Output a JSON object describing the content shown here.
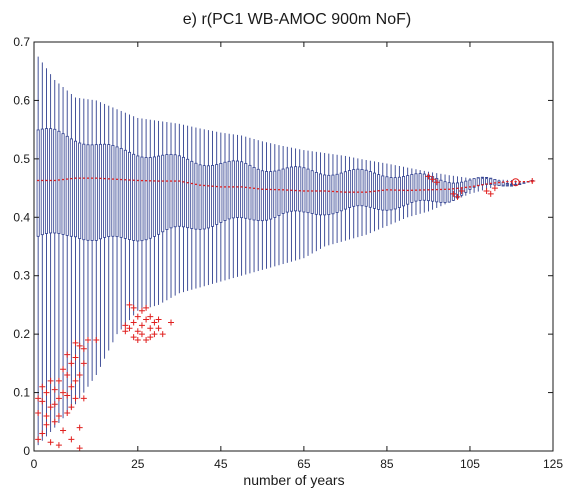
{
  "chart_data": {
    "type": "box",
    "title": "e) r(PC1 WB-AMOC 900m NoF)",
    "xlabel": "number of years",
    "ylabel": "",
    "xlim": [
      0,
      125
    ],
    "ylim": [
      0,
      0.7
    ],
    "x_ticks": [
      0,
      25,
      45,
      65,
      85,
      105,
      125
    ],
    "y_ticks": [
      0,
      0.1,
      0.2,
      0.3,
      0.4,
      0.5,
      0.6,
      0.7
    ],
    "grid": false,
    "colors": {
      "box": "#2f3f8f",
      "median": "#e0201f",
      "outlier": "#e0201f",
      "axis": "#1a1a1a"
    },
    "box_stats": [
      {
        "x": 1,
        "wlo": 0.01,
        "q1": 0.365,
        "med": 0.463,
        "q3": 0.548,
        "whi": 0.675
      },
      {
        "x": 5,
        "wlo": 0.04,
        "q1": 0.368,
        "med": 0.463,
        "q3": 0.545,
        "whi": 0.635
      },
      {
        "x": 10,
        "wlo": 0.08,
        "q1": 0.372,
        "med": 0.467,
        "q3": 0.535,
        "whi": 0.605
      },
      {
        "x": 15,
        "wlo": 0.13,
        "q1": 0.36,
        "med": 0.467,
        "q3": 0.525,
        "whi": 0.6
      },
      {
        "x": 20,
        "wlo": 0.2,
        "q1": 0.362,
        "med": 0.465,
        "q3": 0.515,
        "whi": 0.585
      },
      {
        "x": 25,
        "wlo": 0.24,
        "q1": 0.365,
        "med": 0.463,
        "q3": 0.51,
        "whi": 0.57
      },
      {
        "x": 30,
        "wlo": 0.25,
        "q1": 0.37,
        "med": 0.462,
        "q3": 0.505,
        "whi": 0.565
      },
      {
        "x": 35,
        "wlo": 0.27,
        "q1": 0.38,
        "med": 0.462,
        "q3": 0.5,
        "whi": 0.56
      },
      {
        "x": 40,
        "wlo": 0.28,
        "q1": 0.385,
        "med": 0.455,
        "q3": 0.495,
        "whi": 0.552
      },
      {
        "x": 45,
        "wlo": 0.29,
        "q1": 0.39,
        "med": 0.452,
        "q3": 0.492,
        "whi": 0.545
      },
      {
        "x": 50,
        "wlo": 0.3,
        "q1": 0.395,
        "med": 0.452,
        "q3": 0.49,
        "whi": 0.54
      },
      {
        "x": 55,
        "wlo": 0.31,
        "q1": 0.4,
        "med": 0.448,
        "q3": 0.485,
        "whi": 0.53
      },
      {
        "x": 60,
        "wlo": 0.32,
        "q1": 0.405,
        "med": 0.447,
        "q3": 0.482,
        "whi": 0.522
      },
      {
        "x": 65,
        "wlo": 0.33,
        "q1": 0.405,
        "med": 0.445,
        "q3": 0.48,
        "whi": 0.515
      },
      {
        "x": 70,
        "wlo": 0.35,
        "q1": 0.41,
        "med": 0.445,
        "q3": 0.478,
        "whi": 0.51
      },
      {
        "x": 75,
        "wlo": 0.36,
        "q1": 0.412,
        "med": 0.443,
        "q3": 0.477,
        "whi": 0.505
      },
      {
        "x": 80,
        "wlo": 0.37,
        "q1": 0.415,
        "med": 0.443,
        "q3": 0.476,
        "whi": 0.498
      },
      {
        "x": 85,
        "wlo": 0.385,
        "q1": 0.418,
        "med": 0.447,
        "q3": 0.475,
        "whi": 0.492
      },
      {
        "x": 90,
        "wlo": 0.4,
        "q1": 0.42,
        "med": 0.446,
        "q3": 0.47,
        "whi": 0.485
      },
      {
        "x": 95,
        "wlo": 0.41,
        "q1": 0.425,
        "med": 0.447,
        "q3": 0.468,
        "whi": 0.478
      },
      {
        "x": 100,
        "wlo": 0.425,
        "q1": 0.432,
        "med": 0.448,
        "q3": 0.465,
        "whi": 0.472
      },
      {
        "x": 105,
        "wlo": 0.44,
        "q1": 0.445,
        "med": 0.452,
        "q3": 0.462,
        "whi": 0.467
      },
      {
        "x": 110,
        "wlo": 0.45,
        "q1": 0.453,
        "med": 0.458,
        "q3": 0.463,
        "whi": 0.465
      },
      {
        "x": 114,
        "wlo": 0.458,
        "q1": 0.459,
        "med": 0.461,
        "q3": 0.463,
        "whi": 0.464
      },
      {
        "x": 120,
        "wlo": 0.461,
        "q1": 0.461,
        "med": 0.461,
        "q3": 0.461,
        "whi": 0.461
      }
    ],
    "outliers": [
      {
        "x": 1,
        "y": 0.02
      },
      {
        "x": 1,
        "y": 0.065
      },
      {
        "x": 1,
        "y": 0.09
      },
      {
        "x": 2,
        "y": 0.03
      },
      {
        "x": 2,
        "y": 0.11
      },
      {
        "x": 2,
        "y": 0.085
      },
      {
        "x": 3,
        "y": 0.06
      },
      {
        "x": 3,
        "y": 0.1
      },
      {
        "x": 3,
        "y": 0.045
      },
      {
        "x": 4,
        "y": 0.12
      },
      {
        "x": 4,
        "y": 0.075
      },
      {
        "x": 4,
        "y": 0.015
      },
      {
        "x": 5,
        "y": 0.08
      },
      {
        "x": 5,
        "y": 0.05
      },
      {
        "x": 5,
        "y": 0.105
      },
      {
        "x": 6,
        "y": 0.09
      },
      {
        "x": 6,
        "y": 0.06
      },
      {
        "x": 6,
        "y": 0.12
      },
      {
        "x": 6,
        "y": 0.01
      },
      {
        "x": 7,
        "y": 0.1
      },
      {
        "x": 7,
        "y": 0.14
      },
      {
        "x": 7,
        "y": 0.035
      },
      {
        "x": 8,
        "y": 0.095
      },
      {
        "x": 8,
        "y": 0.13
      },
      {
        "x": 8,
        "y": 0.165
      },
      {
        "x": 8,
        "y": 0.065
      },
      {
        "x": 9,
        "y": 0.11
      },
      {
        "x": 9,
        "y": 0.15
      },
      {
        "x": 9,
        "y": 0.075
      },
      {
        "x": 9,
        "y": 0.02
      },
      {
        "x": 10,
        "y": 0.12
      },
      {
        "x": 10,
        "y": 0.16
      },
      {
        "x": 10,
        "y": 0.09
      },
      {
        "x": 10,
        "y": 0.185
      },
      {
        "x": 11,
        "y": 0.13
      },
      {
        "x": 11,
        "y": 0.18
      },
      {
        "x": 11,
        "y": 0.04
      },
      {
        "x": 11,
        "y": 0.005
      },
      {
        "x": 12,
        "y": 0.175
      },
      {
        "x": 12,
        "y": 0.09
      },
      {
        "x": 12,
        "y": 0.15
      },
      {
        "x": 13,
        "y": 0.19
      },
      {
        "x": 15,
        "y": 0.19
      },
      {
        "x": 22,
        "y": 0.205
      },
      {
        "x": 22,
        "y": 0.215
      },
      {
        "x": 23,
        "y": 0.25
      },
      {
        "x": 23,
        "y": 0.21
      },
      {
        "x": 24,
        "y": 0.22
      },
      {
        "x": 24,
        "y": 0.195
      },
      {
        "x": 24,
        "y": 0.245
      },
      {
        "x": 25,
        "y": 0.23
      },
      {
        "x": 25,
        "y": 0.205
      },
      {
        "x": 25,
        "y": 0.19
      },
      {
        "x": 26,
        "y": 0.24
      },
      {
        "x": 26,
        "y": 0.215
      },
      {
        "x": 26,
        "y": 0.2
      },
      {
        "x": 27,
        "y": 0.225
      },
      {
        "x": 27,
        "y": 0.19
      },
      {
        "x": 27,
        "y": 0.245
      },
      {
        "x": 28,
        "y": 0.21
      },
      {
        "x": 28,
        "y": 0.23
      },
      {
        "x": 28,
        "y": 0.195
      },
      {
        "x": 29,
        "y": 0.22
      },
      {
        "x": 29,
        "y": 0.2
      },
      {
        "x": 30,
        "y": 0.225
      },
      {
        "x": 30,
        "y": 0.21
      },
      {
        "x": 31,
        "y": 0.2
      },
      {
        "x": 33,
        "y": 0.22
      },
      {
        "x": 95,
        "y": 0.47
      },
      {
        "x": 96,
        "y": 0.465
      },
      {
        "x": 97,
        "y": 0.46
      },
      {
        "x": 101,
        "y": 0.44
      },
      {
        "x": 102,
        "y": 0.435
      },
      {
        "x": 103,
        "y": 0.445
      },
      {
        "x": 109,
        "y": 0.445
      },
      {
        "x": 110,
        "y": 0.44
      },
      {
        "x": 111,
        "y": 0.45
      },
      {
        "x": 120,
        "y": 0.462
      }
    ],
    "circle_marker": {
      "x": 116,
      "y": 0.46
    }
  }
}
